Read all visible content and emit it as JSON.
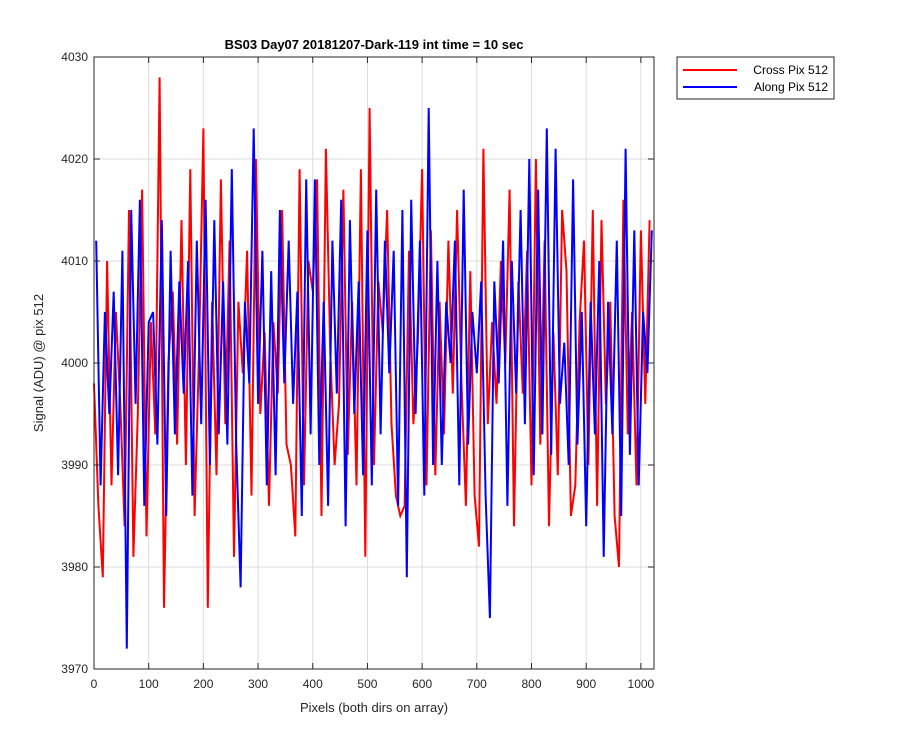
{
  "chart_data": {
    "type": "line",
    "title": "BS03 Day07 20181207-Dark-119 int time = 10 sec",
    "xlabel": "Pixels (both dirs on array)",
    "ylabel": "Signal (ADU) @ pix 512",
    "xlim": [
      0,
      1024
    ],
    "ylim": [
      3970,
      4030
    ],
    "xticks": [
      0,
      100,
      200,
      300,
      400,
      500,
      600,
      700,
      800,
      900,
      1000
    ],
    "yticks": [
      3970,
      3980,
      3990,
      4000,
      4010,
      4020,
      4030
    ],
    "grid": true,
    "legend_position": "outside-top-right",
    "x_step": 8,
    "series": [
      {
        "name": "Cross Pix 512",
        "color": "#ff0000",
        "x_start": 0,
        "values": [
          3998,
          3986,
          3979,
          4010,
          3988,
          4005,
          3996,
          3984,
          4015,
          3981,
          3995,
          4017,
          3983,
          4004,
          3993,
          4028,
          3976,
          4000,
          4007,
          3992,
          4014,
          3990,
          4019,
          3985,
          4001,
          4023,
          3976,
          4006,
          3989,
          4018,
          3994,
          4012,
          3981,
          4006,
          3999,
          4011,
          3987,
          4020,
          3995,
          4003,
          3986,
          4004,
          3997,
          4015,
          3992,
          3990,
          3983,
          4019,
          3988,
          4010,
          4007,
          4018,
          3985,
          4021,
          4001,
          3990,
          3996,
          4017,
          3991,
          4006,
          3988,
          4019,
          3981,
          4025,
          3990,
          4008,
          4003,
          4015,
          3994,
          3987,
          3985,
          3986,
          4011,
          3994,
          4002,
          4019,
          3988,
          4013,
          3989,
          4006,
          3993,
          4012,
          3997,
          4015,
          3998,
          3986,
          4009,
          3987,
          3982,
          4021,
          3994,
          4004,
          3996,
          4010,
          4000,
          4017,
          3984,
          4008,
          3997,
          4011,
          3988,
          4020,
          3992,
          4012,
          3984,
          4003,
          3989,
          4015,
          4009,
          3985,
          3988,
          4004,
          4012,
          3990,
          4015,
          3986,
          4014,
          3996,
          4006,
          3985,
          3980,
          4016,
          3993,
          4005,
          3988,
          4013,
          3996,
          4014
        ]
      },
      {
        "name": "Along Pix 512",
        "color": "#0000ff",
        "x_start": 4,
        "values": [
          4012,
          3988,
          4005,
          3995,
          4007,
          3989,
          4011,
          3972,
          4015,
          3996,
          4016,
          3986,
          4004,
          4005,
          3992,
          4014,
          3985,
          4011,
          3993,
          4008,
          3997,
          4010,
          3987,
          4012,
          3994,
          4016,
          3990,
          4014,
          3993,
          4008,
          3992,
          4019,
          3992,
          3978,
          4006,
          3998,
          4023,
          3996,
          4011,
          3988,
          4009,
          3989,
          4015,
          3998,
          4012,
          3996,
          4007,
          3985,
          4018,
          3993,
          4018,
          3990,
          4006,
          3986,
          4012,
          3997,
          4016,
          3984,
          4014,
          3995,
          4008,
          3989,
          4013,
          3988,
          4017,
          3993,
          4012,
          3999,
          4011,
          3986,
          4015,
          3979,
          4016,
          3995,
          4012,
          3987,
          4025,
          3990,
          4010,
          3990,
          4006,
          4000,
          4012,
          3988,
          4017,
          3992,
          4005,
          3999,
          4008,
          3987,
          3975,
          4008,
          3998,
          4012,
          3986,
          4010,
          3997,
          4015,
          3994,
          4020,
          3989,
          4017,
          3993,
          4023,
          3991,
          4021,
          3996,
          4002,
          3990,
          4018,
          3992,
          4005,
          3984,
          4006,
          3993,
          4010,
          3981,
          4006,
          3993,
          4012,
          3985,
          4021,
          3991,
          4013,
          3988,
          4005,
          3999,
          4013
        ]
      }
    ]
  }
}
